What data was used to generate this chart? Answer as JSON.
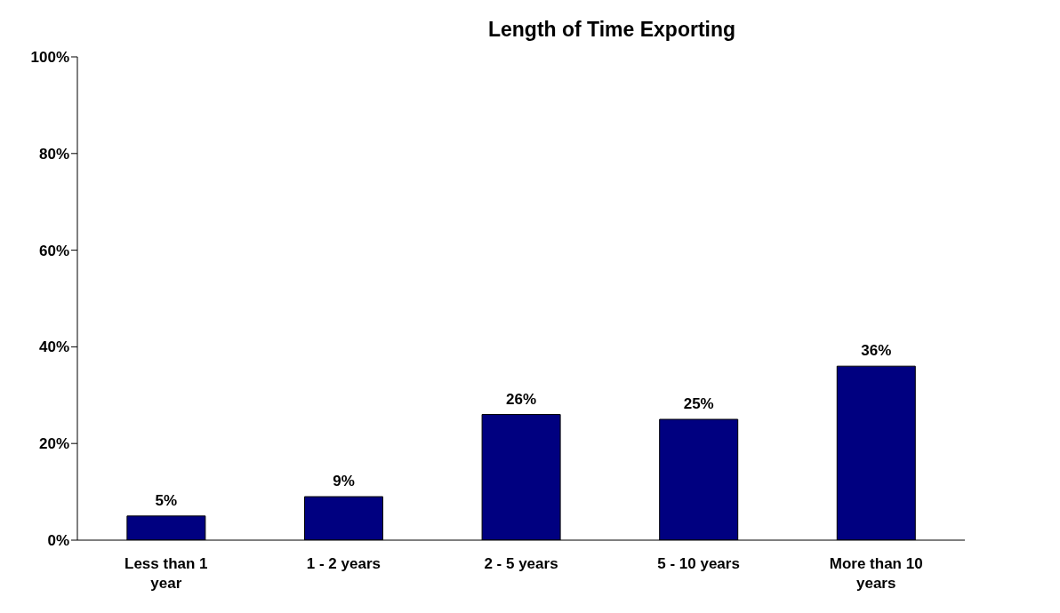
{
  "chart_data": {
    "type": "bar",
    "title": "Length of Time Exporting",
    "categories": [
      "Less than 1 year",
      "1 - 2 years",
      "2 - 5 years",
      "5 - 10 years",
      "More than 10 years"
    ],
    "values": [
      5,
      9,
      26,
      25,
      36
    ],
    "color": "#000080",
    "value_labels": [
      "5%",
      "9%",
      "26%",
      "25%",
      "36%"
    ],
    "ylim": [
      0,
      100
    ],
    "yticks": [
      {
        "value": 0,
        "label": "0%"
      },
      {
        "value": 20,
        "label": "20%"
      },
      {
        "value": 40,
        "label": "40%"
      },
      {
        "value": 60,
        "label": "60%"
      },
      {
        "value": 80,
        "label": "80%"
      },
      {
        "value": 100,
        "label": "100%"
      }
    ]
  }
}
